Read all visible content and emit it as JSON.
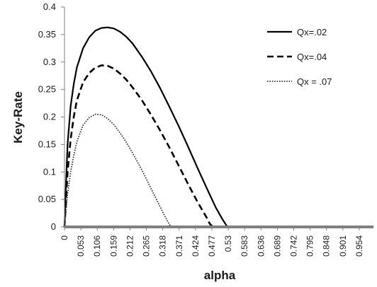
{
  "chart_data": {
    "type": "line",
    "xlabel": "alpha",
    "ylabel": "Key-Rate",
    "ylim": [
      0,
      0.4
    ],
    "xlim": [
      0,
      1.0
    ],
    "y_ticks": [
      "0",
      "0.05",
      "0.1",
      "0.15",
      "0.2",
      "0.25",
      "0.3",
      "0.35",
      "0.4"
    ],
    "y_tick_values": [
      0,
      0.05,
      0.1,
      0.15,
      0.2,
      0.25,
      0.3,
      0.35,
      0.4
    ],
    "x_ticks": [
      "0",
      "0.053",
      "0.106",
      "0.159",
      "0.212",
      "0.265",
      "0.318",
      "0.371",
      "0.424",
      "0.477",
      "0.53",
      "0.583",
      "0.636",
      "0.689",
      "0.742",
      "0.795",
      "0.848",
      "0.901",
      "0.954"
    ],
    "x_tick_values": [
      0,
      0.053,
      0.106,
      0.159,
      0.212,
      0.265,
      0.318,
      0.371,
      0.424,
      0.477,
      0.53,
      0.583,
      0.636,
      0.689,
      0.742,
      0.795,
      0.848,
      0.901,
      0.954
    ],
    "grid": false,
    "legend_position": "top-right",
    "series": [
      {
        "name": "Qx=.02",
        "style": "solid",
        "color": "#000000",
        "points": [
          [
            0.0,
            0
          ],
          [
            0.005,
            0.08
          ],
          [
            0.01,
            0.15
          ],
          [
            0.02,
            0.22
          ],
          [
            0.03,
            0.26
          ],
          [
            0.04,
            0.29
          ],
          [
            0.06,
            0.325
          ],
          [
            0.08,
            0.345
          ],
          [
            0.1,
            0.357
          ],
          [
            0.12,
            0.362
          ],
          [
            0.14,
            0.363
          ],
          [
            0.16,
            0.361
          ],
          [
            0.18,
            0.355
          ],
          [
            0.2,
            0.346
          ],
          [
            0.22,
            0.334
          ],
          [
            0.25,
            0.31
          ],
          [
            0.28,
            0.283
          ],
          [
            0.31,
            0.252
          ],
          [
            0.34,
            0.218
          ],
          [
            0.37,
            0.183
          ],
          [
            0.4,
            0.146
          ],
          [
            0.43,
            0.108
          ],
          [
            0.46,
            0.071
          ],
          [
            0.49,
            0.035
          ],
          [
            0.51,
            0.015
          ],
          [
            0.525,
            0.002
          ],
          [
            0.53,
            0
          ],
          [
            1.0,
            0
          ]
        ]
      },
      {
        "name": "Qx=.04",
        "style": "dashed",
        "color": "#000000",
        "points": [
          [
            0.0,
            0
          ],
          [
            0.005,
            0.05
          ],
          [
            0.01,
            0.1
          ],
          [
            0.02,
            0.16
          ],
          [
            0.03,
            0.2
          ],
          [
            0.04,
            0.23
          ],
          [
            0.06,
            0.263
          ],
          [
            0.08,
            0.28
          ],
          [
            0.1,
            0.29
          ],
          [
            0.12,
            0.294
          ],
          [
            0.14,
            0.293
          ],
          [
            0.16,
            0.288
          ],
          [
            0.18,
            0.279
          ],
          [
            0.2,
            0.268
          ],
          [
            0.22,
            0.254
          ],
          [
            0.25,
            0.231
          ],
          [
            0.28,
            0.204
          ],
          [
            0.31,
            0.175
          ],
          [
            0.34,
            0.144
          ],
          [
            0.37,
            0.111
          ],
          [
            0.4,
            0.078
          ],
          [
            0.43,
            0.046
          ],
          [
            0.46,
            0.017
          ],
          [
            0.47,
            0.006
          ],
          [
            0.48,
            0
          ],
          [
            1.0,
            0
          ]
        ]
      },
      {
        "name": "Qx = .07",
        "style": "dotted",
        "color": "#333333",
        "points": [
          [
            0.0,
            0
          ],
          [
            0.01,
            0.06
          ],
          [
            0.02,
            0.1
          ],
          [
            0.03,
            0.13
          ],
          [
            0.04,
            0.155
          ],
          [
            0.06,
            0.185
          ],
          [
            0.08,
            0.199
          ],
          [
            0.1,
            0.205
          ],
          [
            0.12,
            0.204
          ],
          [
            0.14,
            0.197
          ],
          [
            0.16,
            0.186
          ],
          [
            0.18,
            0.171
          ],
          [
            0.2,
            0.154
          ],
          [
            0.22,
            0.135
          ],
          [
            0.25,
            0.104
          ],
          [
            0.28,
            0.07
          ],
          [
            0.31,
            0.036
          ],
          [
            0.33,
            0.014
          ],
          [
            0.34,
            0.004
          ],
          [
            0.345,
            0
          ],
          [
            0.48,
            0
          ],
          [
            1.0,
            0
          ]
        ]
      }
    ]
  }
}
